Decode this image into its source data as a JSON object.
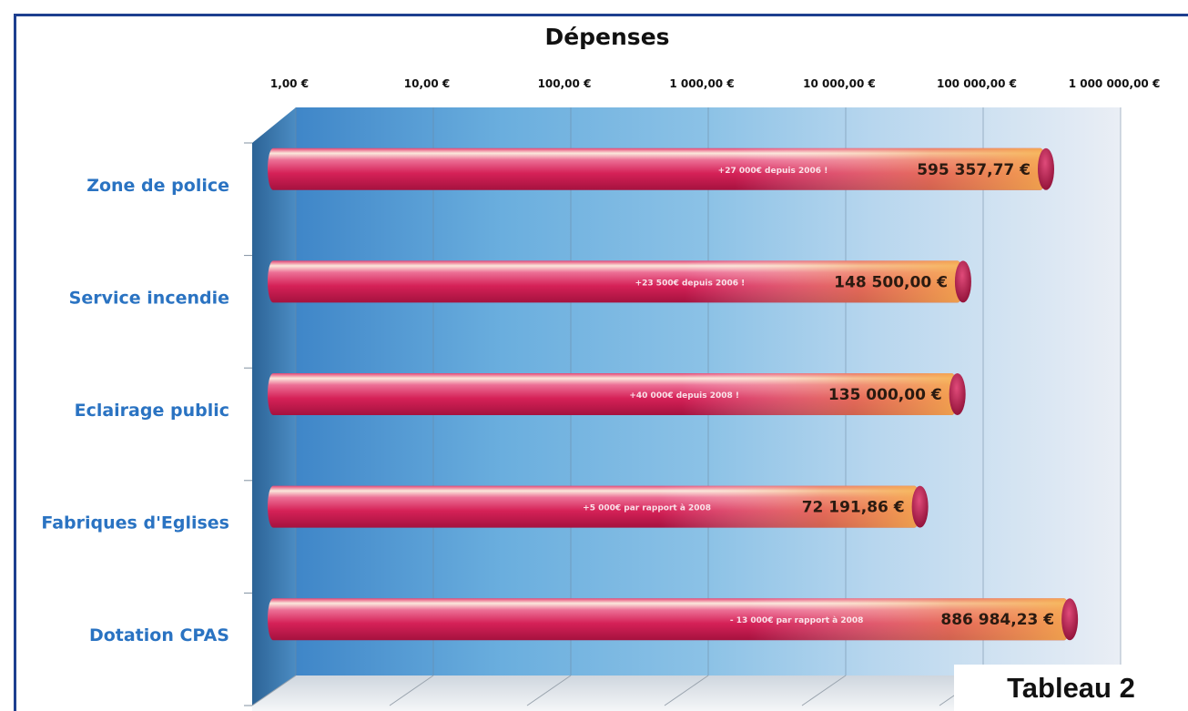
{
  "chart_data": {
    "type": "bar",
    "orientation": "horizontal",
    "title": "Dépenses",
    "scale": "log",
    "xlim": [
      1,
      1000000
    ],
    "x_ticks": [
      "1,00 €",
      "10,00 €",
      "100,00 €",
      "1 000,00 €",
      "10 000,00 €",
      "100 000,00 €",
      "1 000 000,00 €"
    ],
    "categories": [
      "Zone de police",
      "Service incendie",
      "Eclairage public",
      "Fabriques d'Eglises",
      "Dotation CPAS"
    ],
    "values": [
      595357.77,
      148500.0,
      135000.0,
      72191.86,
      886984.23
    ],
    "value_labels": [
      "595 357,77 €",
      "148 500,00 €",
      "135 000,00 €",
      "72 191,86 €",
      "886 984,23 €"
    ],
    "notes": [
      "+27 000€ depuis 2006 !",
      "+23 500€ depuis 2006 !",
      "+40 000€ depuis 2008 !",
      "+5 000€ par rapport à 2008",
      "- 13 000€ par rapport à 2008"
    ],
    "legend": "none",
    "grid": true
  },
  "caption": "Tableau 2",
  "colors": {
    "bar_main": "#d8265c",
    "bar_end": "#f0a050",
    "bar_highlight": "#fff3e6",
    "plot_bg_left": "#5fa5d8",
    "plot_bg_right": "#e6ecf3",
    "category_text": "#2a73c2",
    "frame": "#1d3f8f"
  }
}
